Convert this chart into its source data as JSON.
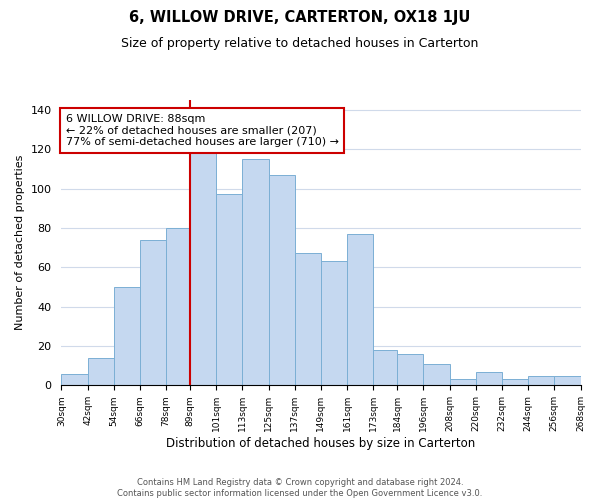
{
  "title": "6, WILLOW DRIVE, CARTERTON, OX18 1JU",
  "subtitle": "Size of property relative to detached houses in Carterton",
  "xlabel": "Distribution of detached houses by size in Carterton",
  "ylabel": "Number of detached properties",
  "bar_color": "#c5d8f0",
  "bar_edge_color": "#7bafd4",
  "marker_line_color": "#cc0000",
  "annotation_text": "6 WILLOW DRIVE: 88sqm\n← 22% of detached houses are smaller (207)\n77% of semi-detached houses are larger (710) →",
  "annotation_box_color": "#ffffff",
  "annotation_box_edge": "#cc0000",
  "footnote": "Contains HM Land Registry data © Crown copyright and database right 2024.\nContains public sector information licensed under the Open Government Licence v3.0.",
  "bins": [
    30,
    42,
    54,
    66,
    78,
    89,
    101,
    113,
    125,
    137,
    149,
    161,
    173,
    184,
    196,
    208,
    220,
    232,
    244,
    256,
    268
  ],
  "counts": [
    6,
    14,
    50,
    74,
    80,
    119,
    97,
    115,
    107,
    67,
    63,
    77,
    18,
    16,
    11,
    3,
    7,
    3,
    5,
    5
  ],
  "tick_labels": [
    "30sqm",
    "42sqm",
    "54sqm",
    "66sqm",
    "78sqm",
    "89sqm",
    "101sqm",
    "113sqm",
    "125sqm",
    "137sqm",
    "149sqm",
    "161sqm",
    "173sqm",
    "184sqm",
    "196sqm",
    "208sqm",
    "220sqm",
    "232sqm",
    "244sqm",
    "256sqm",
    "268sqm"
  ],
  "ylim": [
    0,
    145
  ],
  "yticks": [
    0,
    20,
    40,
    60,
    80,
    100,
    120,
    140
  ],
  "bg_color": "#ffffff",
  "grid_color": "#d0daea"
}
